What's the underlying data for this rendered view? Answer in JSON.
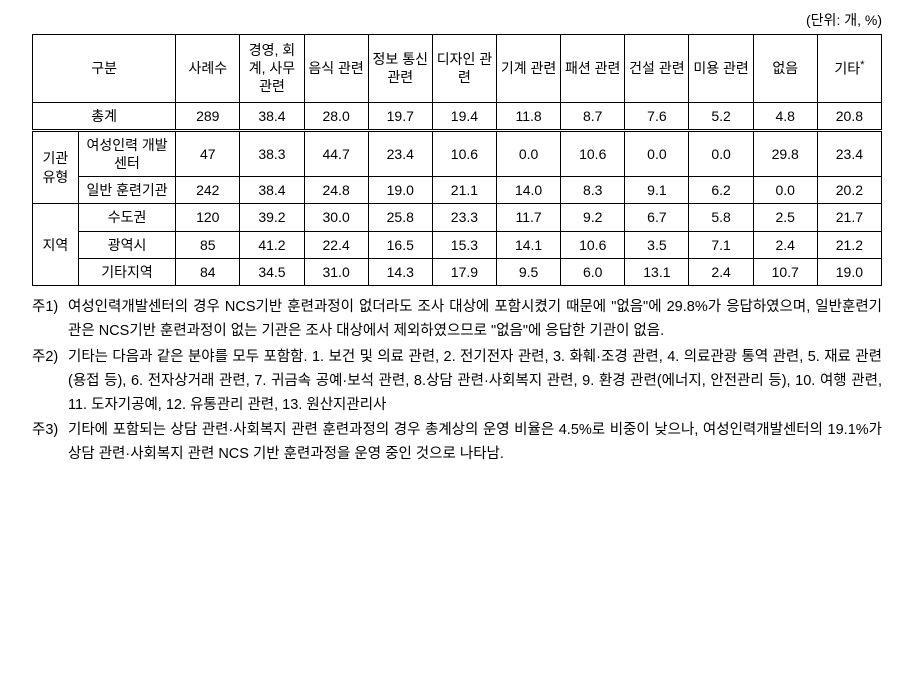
{
  "unit_label": "(단위: 개, %)",
  "table": {
    "header": {
      "gubun": "구분",
      "cols": [
        "사례수",
        "경영, 회계, 사무 관련",
        "음식 관련",
        "정보 통신 관련",
        "디자인 관련",
        "기계 관련",
        "패션 관련",
        "건설 관련",
        "미용 관련",
        "없음",
        "기타"
      ],
      "etc_marker": "*"
    },
    "total_row": {
      "label": "총계",
      "vals": [
        "289",
        "38.4",
        "28.0",
        "19.7",
        "19.4",
        "11.8",
        "8.7",
        "7.6",
        "5.2",
        "4.8",
        "20.8"
      ]
    },
    "groups": [
      {
        "group": "기관 유형",
        "rows": [
          {
            "label": "여성인력 개발센터",
            "vals": [
              "47",
              "38.3",
              "44.7",
              "23.4",
              "10.6",
              "0.0",
              "10.6",
              "0.0",
              "0.0",
              "29.8",
              "23.4"
            ]
          },
          {
            "label": "일반 훈련기관",
            "vals": [
              "242",
              "38.4",
              "24.8",
              "19.0",
              "21.1",
              "14.0",
              "8.3",
              "9.1",
              "6.2",
              "0.0",
              "20.2"
            ]
          }
        ]
      },
      {
        "group": "지역",
        "rows": [
          {
            "label": "수도권",
            "vals": [
              "120",
              "39.2",
              "30.0",
              "25.8",
              "23.3",
              "11.7",
              "9.2",
              "6.7",
              "5.8",
              "2.5",
              "21.7"
            ]
          },
          {
            "label": "광역시",
            "vals": [
              "85",
              "41.2",
              "22.4",
              "16.5",
              "15.3",
              "14.1",
              "10.6",
              "3.5",
              "7.1",
              "2.4",
              "21.2"
            ]
          },
          {
            "label": "기타지역",
            "vals": [
              "84",
              "34.5",
              "31.0",
              "14.3",
              "17.9",
              "9.5",
              "6.0",
              "13.1",
              "2.4",
              "10.7",
              "19.0"
            ]
          }
        ]
      }
    ]
  },
  "notes": [
    {
      "label": "주1)",
      "text": "여성인력개발센터의 경우 NCS기반 훈련과정이 없더라도 조사 대상에 포함시켰기 때문에 \"없음\"에 29.8%가 응답하였으며, 일반훈련기관은 NCS기반 훈련과정이 없는 기관은 조사 대상에서 제외하였으므로 \"없음\"에 응답한 기관이 없음."
    },
    {
      "label": "주2)",
      "text": "기타는 다음과 같은 분야를 모두 포함함. 1. 보건 및 의료 관련, 2. 전기전자 관련, 3. 화훼·조경 관련, 4. 의료관광 통역 관련, 5. 재료 관련(용접 등), 6. 전자상거래 관련, 7. 귀금속 공예·보석 관련, 8.상담 관련·사회복지 관련, 9. 환경 관련(에너지, 안전관리 등), 10. 여행 관련, 11. 도자기공예, 12. 유통관리 관련, 13. 원산지관리사"
    },
    {
      "label": "주3)",
      "text": "기타에 포함되는 상담 관련·사회복지 관련 훈련과정의 경우 총계상의 운영 비율은 4.5%로 비중이 낮으나, 여성인력개발센터의 19.1%가 상담 관련·사회복지 관련 NCS 기반 훈련과정을 운영 중인 것으로 나타남."
    }
  ]
}
